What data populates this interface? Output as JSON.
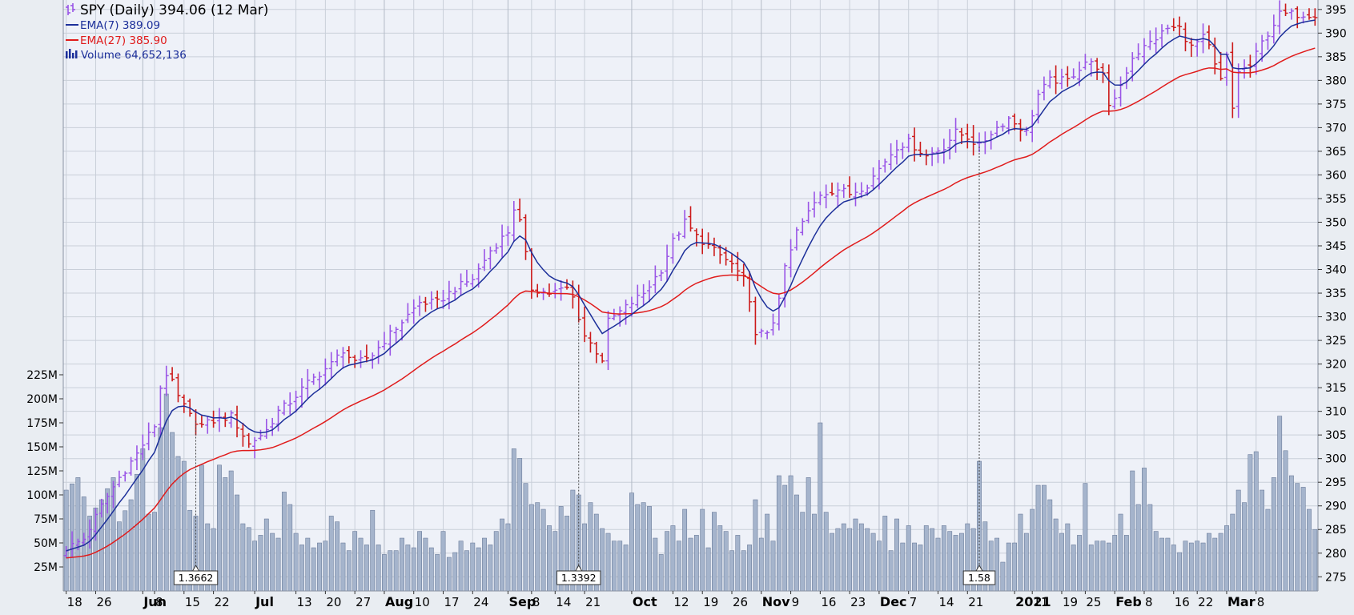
{
  "legend": {
    "price_label": "SPY (Daily) 394.06 (12 Mar)",
    "ema7_label": "EMA(7) 389.09",
    "ema27_label": "EMA(27) 385.90",
    "volume_label": "Volume 64,652,136"
  },
  "colors": {
    "background": "#eef1f8",
    "outer": "#e9edf2",
    "grid": "#c9cfd9",
    "up_bar": "#9a55e6",
    "down_bar": "#cc1a1a",
    "ema7": "#1c2f9a",
    "ema27": "#e01b1b",
    "volume_fill": "#a5b4cc",
    "volume_stroke": "#5c6f8f"
  },
  "chart_data": {
    "type": "line",
    "title": "SPY (Daily) 394.06 (12 Mar)",
    "price_axis": {
      "ylim": [
        272,
        397
      ],
      "ticks": [
        275,
        280,
        285,
        290,
        295,
        300,
        305,
        310,
        315,
        320,
        325,
        330,
        335,
        340,
        345,
        350,
        355,
        360,
        365,
        370,
        375,
        380,
        385,
        390,
        395
      ]
    },
    "volume_axis": {
      "max_m": 260,
      "ticks": [
        25,
        50,
        75,
        100,
        125,
        150,
        175,
        200,
        225
      ],
      "tick_labels": [
        "25M",
        "50M",
        "75M",
        "100M",
        "125M",
        "150M",
        "175M",
        "200M",
        "225M"
      ]
    },
    "x_ticks": [
      {
        "i": 0,
        "label": "18",
        "bold": false
      },
      {
        "i": 5,
        "label": "26",
        "bold": false
      },
      {
        "i": 13,
        "label": "Jun",
        "bold": true
      },
      {
        "i": 15,
        "label": "8",
        "bold": false
      },
      {
        "i": 20,
        "label": "15",
        "bold": false
      },
      {
        "i": 25,
        "label": "22",
        "bold": false
      },
      {
        "i": 32,
        "label": "Jul",
        "bold": true
      },
      {
        "i": 39,
        "label": "13",
        "bold": false
      },
      {
        "i": 44,
        "label": "20",
        "bold": false
      },
      {
        "i": 49,
        "label": "27",
        "bold": false
      },
      {
        "i": 54,
        "label": "Aug",
        "bold": true
      },
      {
        "i": 59,
        "label": "10",
        "bold": false
      },
      {
        "i": 64,
        "label": "17",
        "bold": false
      },
      {
        "i": 69,
        "label": "24",
        "bold": false
      },
      {
        "i": 75,
        "label": "Sep",
        "bold": true
      },
      {
        "i": 79,
        "label": "8",
        "bold": false
      },
      {
        "i": 83,
        "label": "14",
        "bold": false
      },
      {
        "i": 88,
        "label": "21",
        "bold": false
      },
      {
        "i": 96,
        "label": "Oct",
        "bold": true
      },
      {
        "i": 103,
        "label": "12",
        "bold": false
      },
      {
        "i": 108,
        "label": "19",
        "bold": false
      },
      {
        "i": 113,
        "label": "26",
        "bold": false
      },
      {
        "i": 118,
        "label": "Nov",
        "bold": true
      },
      {
        "i": 123,
        "label": "9",
        "bold": false
      },
      {
        "i": 128,
        "label": "16",
        "bold": false
      },
      {
        "i": 133,
        "label": "23",
        "bold": false
      },
      {
        "i": 138,
        "label": "Dec",
        "bold": true
      },
      {
        "i": 143,
        "label": "7",
        "bold": false
      },
      {
        "i": 148,
        "label": "14",
        "bold": false
      },
      {
        "i": 153,
        "label": "21",
        "bold": false
      },
      {
        "i": 161,
        "label": "2021",
        "bold": true
      },
      {
        "i": 164,
        "label": "11",
        "bold": false
      },
      {
        "i": 169,
        "label": "19",
        "bold": false
      },
      {
        "i": 173,
        "label": "25",
        "bold": false
      },
      {
        "i": 178,
        "label": "Feb",
        "bold": true
      },
      {
        "i": 183,
        "label": "8",
        "bold": false
      },
      {
        "i": 188,
        "label": "16",
        "bold": false
      },
      {
        "i": 192,
        "label": "22",
        "bold": false
      },
      {
        "i": 197,
        "label": "Mar",
        "bold": true
      },
      {
        "i": 202,
        "label": "8",
        "bold": false
      }
    ],
    "split_markers": [
      {
        "i": 22,
        "label": "1.3662"
      },
      {
        "i": 87,
        "label": "1.3392"
      },
      {
        "i": 155,
        "label": "1.58"
      }
    ],
    "anchors": [
      [
        0,
        281
      ],
      [
        3,
        283
      ],
      [
        6,
        290
      ],
      [
        9,
        296
      ],
      [
        12,
        301
      ],
      [
        15,
        307
      ],
      [
        16,
        315
      ],
      [
        17,
        318
      ],
      [
        18,
        316
      ],
      [
        19,
        313
      ],
      [
        21,
        309
      ],
      [
        23,
        307
      ],
      [
        25,
        308
      ],
      [
        28,
        309
      ],
      [
        31,
        303
      ],
      [
        34,
        306
      ],
      [
        36,
        310
      ],
      [
        38,
        312
      ],
      [
        41,
        316
      ],
      [
        43,
        318
      ],
      [
        45,
        320
      ],
      [
        47,
        323
      ],
      [
        49,
        320
      ],
      [
        52,
        322
      ],
      [
        54,
        325
      ],
      [
        57,
        329
      ],
      [
        60,
        333
      ],
      [
        63,
        333
      ],
      [
        66,
        336
      ],
      [
        69,
        338
      ],
      [
        72,
        344
      ],
      [
        75,
        348
      ],
      [
        76,
        353
      ],
      [
        77,
        350
      ],
      [
        79,
        336
      ],
      [
        82,
        335
      ],
      [
        85,
        336
      ],
      [
        86,
        334
      ],
      [
        88,
        326
      ],
      [
        91,
        321
      ],
      [
        92,
        329
      ],
      [
        94,
        331
      ],
      [
        96,
        333
      ],
      [
        98,
        335
      ],
      [
        101,
        340
      ],
      [
        103,
        346
      ],
      [
        105,
        350
      ],
      [
        107,
        347
      ],
      [
        110,
        344
      ],
      [
        113,
        341
      ],
      [
        115,
        338
      ],
      [
        117,
        327
      ],
      [
        119,
        326
      ],
      [
        120,
        329
      ],
      [
        122,
        340
      ],
      [
        124,
        348
      ],
      [
        126,
        352
      ],
      [
        128,
        356
      ],
      [
        131,
        357
      ],
      [
        133,
        356
      ],
      [
        136,
        358
      ],
      [
        139,
        363
      ],
      [
        141,
        366
      ],
      [
        143,
        367
      ],
      [
        146,
        364
      ],
      [
        149,
        366
      ],
      [
        151,
        369
      ],
      [
        153,
        368
      ],
      [
        155,
        366
      ],
      [
        157,
        369
      ],
      [
        160,
        372
      ],
      [
        163,
        369
      ],
      [
        165,
        377
      ],
      [
        167,
        380
      ],
      [
        170,
        380
      ],
      [
        173,
        384
      ],
      [
        175,
        383
      ],
      [
        176,
        381
      ],
      [
        177,
        374
      ],
      [
        179,
        379
      ],
      [
        181,
        385
      ],
      [
        183,
        387
      ],
      [
        185,
        389
      ],
      [
        187,
        391
      ],
      [
        189,
        391
      ],
      [
        191,
        387
      ],
      [
        193,
        389
      ],
      [
        194,
        387
      ],
      [
        195,
        383
      ],
      [
        196,
        380
      ],
      [
        197,
        385
      ],
      [
        198,
        374
      ],
      [
        199,
        382
      ],
      [
        201,
        383
      ],
      [
        203,
        388
      ],
      [
        206,
        394
      ]
    ],
    "volume_anchors_m": [
      [
        0,
        105
      ],
      [
        2,
        118
      ],
      [
        4,
        78
      ],
      [
        6,
        95
      ],
      [
        8,
        118
      ],
      [
        9,
        72
      ],
      [
        11,
        95
      ],
      [
        13,
        148
      ],
      [
        14,
        80
      ],
      [
        15,
        82
      ],
      [
        16,
        170
      ],
      [
        17,
        205
      ],
      [
        18,
        165
      ],
      [
        19,
        140
      ],
      [
        20,
        135
      ],
      [
        21,
        84
      ],
      [
        22,
        78
      ],
      [
        23,
        131
      ],
      [
        24,
        70
      ],
      [
        25,
        65
      ],
      [
        26,
        131
      ],
      [
        27,
        118
      ],
      [
        28,
        125
      ],
      [
        29,
        100
      ],
      [
        30,
        70
      ],
      [
        31,
        66
      ],
      [
        32,
        52
      ],
      [
        33,
        58
      ],
      [
        34,
        75
      ],
      [
        35,
        60
      ],
      [
        36,
        55
      ],
      [
        37,
        103
      ],
      [
        38,
        90
      ],
      [
        39,
        60
      ],
      [
        40,
        48
      ],
      [
        41,
        55
      ],
      [
        42,
        45
      ],
      [
        43,
        50
      ],
      [
        44,
        52
      ],
      [
        45,
        78
      ],
      [
        46,
        72
      ],
      [
        47,
        50
      ],
      [
        48,
        42
      ],
      [
        49,
        62
      ],
      [
        50,
        55
      ],
      [
        51,
        48
      ],
      [
        52,
        84
      ],
      [
        53,
        48
      ],
      [
        54,
        38
      ],
      [
        55,
        42
      ],
      [
        56,
        42
      ],
      [
        57,
        55
      ],
      [
        58,
        48
      ],
      [
        59,
        45
      ],
      [
        60,
        62
      ],
      [
        61,
        55
      ],
      [
        62,
        45
      ],
      [
        63,
        38
      ],
      [
        64,
        62
      ],
      [
        65,
        35
      ],
      [
        66,
        40
      ],
      [
        67,
        52
      ],
      [
        68,
        42
      ],
      [
        69,
        50
      ],
      [
        70,
        45
      ],
      [
        71,
        55
      ],
      [
        72,
        48
      ],
      [
        73,
        62
      ],
      [
        74,
        75
      ],
      [
        75,
        70
      ],
      [
        76,
        148
      ],
      [
        77,
        138
      ],
      [
        78,
        112
      ],
      [
        79,
        90
      ],
      [
        80,
        92
      ],
      [
        81,
        85
      ],
      [
        82,
        68
      ],
      [
        83,
        62
      ],
      [
        84,
        88
      ],
      [
        85,
        78
      ],
      [
        86,
        105
      ],
      [
        87,
        100
      ],
      [
        88,
        70
      ],
      [
        89,
        92
      ],
      [
        90,
        80
      ],
      [
        91,
        65
      ],
      [
        92,
        60
      ],
      [
        93,
        52
      ],
      [
        94,
        52
      ],
      [
        95,
        48
      ],
      [
        96,
        102
      ],
      [
        97,
        90
      ],
      [
        98,
        92
      ],
      [
        99,
        88
      ],
      [
        100,
        55
      ],
      [
        101,
        38
      ],
      [
        102,
        62
      ],
      [
        103,
        68
      ],
      [
        104,
        52
      ],
      [
        105,
        85
      ],
      [
        106,
        55
      ],
      [
        107,
        58
      ],
      [
        108,
        85
      ],
      [
        109,
        45
      ],
      [
        110,
        82
      ],
      [
        111,
        68
      ],
      [
        112,
        62
      ],
      [
        113,
        42
      ],
      [
        114,
        58
      ],
      [
        115,
        42
      ],
      [
        116,
        48
      ],
      [
        117,
        95
      ],
      [
        118,
        55
      ],
      [
        119,
        80
      ],
      [
        120,
        52
      ],
      [
        121,
        120
      ],
      [
        122,
        110
      ],
      [
        123,
        120
      ],
      [
        124,
        100
      ],
      [
        125,
        82
      ],
      [
        126,
        118
      ],
      [
        127,
        80
      ],
      [
        128,
        175
      ],
      [
        129,
        82
      ],
      [
        130,
        60
      ],
      [
        131,
        65
      ],
      [
        132,
        70
      ],
      [
        133,
        65
      ],
      [
        134,
        75
      ],
      [
        135,
        70
      ],
      [
        136,
        65
      ],
      [
        137,
        60
      ],
      [
        138,
        52
      ],
      [
        139,
        78
      ],
      [
        140,
        42
      ],
      [
        141,
        75
      ],
      [
        142,
        50
      ],
      [
        143,
        68
      ],
      [
        144,
        50
      ],
      [
        145,
        48
      ],
      [
        146,
        68
      ],
      [
        147,
        65
      ],
      [
        148,
        55
      ],
      [
        149,
        68
      ],
      [
        150,
        62
      ],
      [
        151,
        58
      ],
      [
        152,
        60
      ],
      [
        153,
        70
      ],
      [
        154,
        65
      ],
      [
        155,
        135
      ],
      [
        156,
        72
      ],
      [
        157,
        52
      ],
      [
        158,
        55
      ],
      [
        159,
        30
      ],
      [
        160,
        50
      ],
      [
        161,
        50
      ],
      [
        162,
        80
      ],
      [
        163,
        60
      ],
      [
        164,
        85
      ],
      [
        165,
        110
      ],
      [
        166,
        110
      ],
      [
        167,
        95
      ],
      [
        168,
        75
      ],
      [
        169,
        60
      ],
      [
        170,
        70
      ],
      [
        171,
        48
      ],
      [
        172,
        58
      ],
      [
        173,
        112
      ],
      [
        174,
        48
      ],
      [
        175,
        52
      ],
      [
        176,
        52
      ],
      [
        177,
        50
      ],
      [
        178,
        58
      ],
      [
        179,
        80
      ],
      [
        180,
        58
      ],
      [
        181,
        125
      ],
      [
        182,
        90
      ],
      [
        183,
        128
      ],
      [
        184,
        90
      ],
      [
        185,
        62
      ],
      [
        186,
        55
      ],
      [
        187,
        55
      ],
      [
        188,
        48
      ],
      [
        189,
        40
      ],
      [
        190,
        52
      ],
      [
        191,
        50
      ],
      [
        192,
        52
      ],
      [
        193,
        50
      ],
      [
        194,
        60
      ],
      [
        195,
        55
      ],
      [
        196,
        60
      ],
      [
        197,
        68
      ],
      [
        198,
        80
      ],
      [
        199,
        105
      ],
      [
        200,
        92
      ],
      [
        201,
        142
      ],
      [
        202,
        145
      ],
      [
        203,
        105
      ],
      [
        204,
        85
      ],
      [
        205,
        118
      ],
      [
        206,
        182
      ],
      [
        207,
        146
      ],
      [
        208,
        120
      ],
      [
        209,
        112
      ],
      [
        210,
        108
      ],
      [
        211,
        85
      ],
      [
        212,
        64
      ]
    ]
  }
}
